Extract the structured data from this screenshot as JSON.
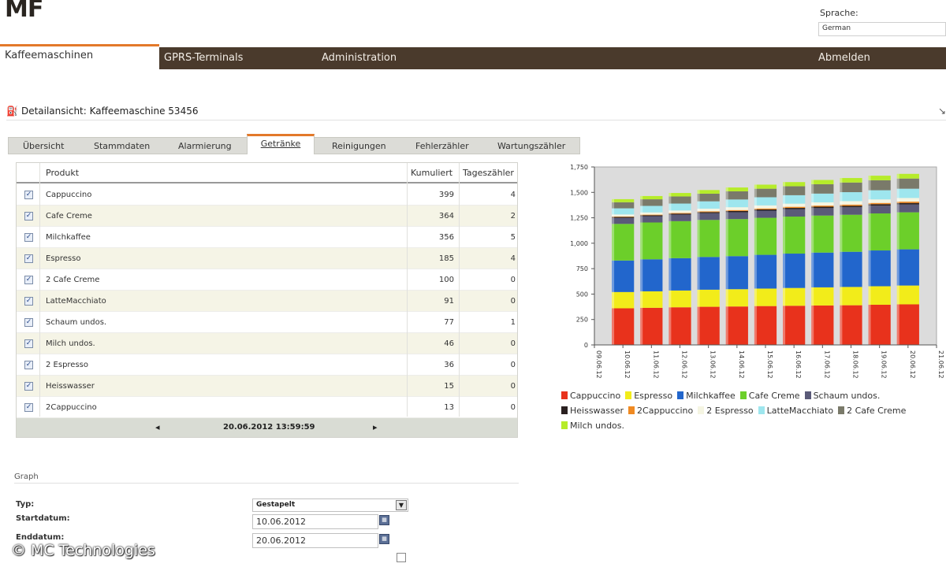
{
  "brand": {
    "logo": "MF"
  },
  "language": {
    "label": "Sprache:",
    "value": "German"
  },
  "nav": {
    "items": [
      {
        "label": "Kaffeemaschinen",
        "active": true
      },
      {
        "label": "GPRS-Terminals",
        "active": false
      },
      {
        "label": "Administration",
        "active": false
      }
    ],
    "logout": "Abmelden"
  },
  "page": {
    "title": "Detailansicht: Kaffeemaschine 53456"
  },
  "tabs": [
    {
      "label": "Übersicht",
      "active": false
    },
    {
      "label": "Stammdaten",
      "active": false
    },
    {
      "label": "Alarmierung",
      "active": false
    },
    {
      "label": "Getränke",
      "active": true
    },
    {
      "label": "Reinigungen",
      "active": false
    },
    {
      "label": "Fehlerzähler",
      "active": false
    },
    {
      "label": "Wartungszähler",
      "active": false
    }
  ],
  "grid": {
    "headers": {
      "product": "Produkt",
      "cumulative": "Kumuliert",
      "daily": "Tageszähler"
    },
    "rows": [
      {
        "product": "Cappuccino",
        "cumulative": "399",
        "daily": "4",
        "checked": true
      },
      {
        "product": "Cafe Creme",
        "cumulative": "364",
        "daily": "2",
        "checked": true
      },
      {
        "product": "Milchkaffee",
        "cumulative": "356",
        "daily": "5",
        "checked": true
      },
      {
        "product": "Espresso",
        "cumulative": "185",
        "daily": "4",
        "checked": true
      },
      {
        "product": "2 Cafe Creme",
        "cumulative": "100",
        "daily": "0",
        "checked": true
      },
      {
        "product": "LatteMacchiato",
        "cumulative": "91",
        "daily": "0",
        "checked": true
      },
      {
        "product": "Schaum undos.",
        "cumulative": "77",
        "daily": "1",
        "checked": true
      },
      {
        "product": "Milch undos.",
        "cumulative": "46",
        "daily": "0",
        "checked": true
      },
      {
        "product": "2 Espresso",
        "cumulative": "36",
        "daily": "0",
        "checked": true
      },
      {
        "product": "Heisswasser",
        "cumulative": "15",
        "daily": "0",
        "checked": true
      },
      {
        "product": "2Cappuccino",
        "cumulative": "13",
        "daily": "0",
        "checked": true
      }
    ],
    "footer": {
      "prev": "◂",
      "timestamp": "20.06.2012 13:59:59",
      "next": "▸"
    }
  },
  "graph_form": {
    "section": "Graph",
    "type_label": "Typ:",
    "type_value": "Gestapelt",
    "start_label": "Startdatum:",
    "start_value": "10.06.2012",
    "end_label": "Enddatum:",
    "end_value": "20.06.2012"
  },
  "watermark": "© MC Technologies",
  "chart_data": {
    "type": "bar",
    "stacked": true,
    "categories": [
      "10.06.12",
      "11.06.12",
      "12.06.12",
      "13.06.12",
      "14.06.12",
      "15.06.12",
      "16.06.12",
      "17.06.12",
      "18.06.12",
      "19.06.12",
      "20.06.12"
    ],
    "axis_ticks_x": [
      "09.06.12",
      "10.06.12",
      "11.06.12",
      "12.06.12",
      "13.06.12",
      "14.06.12",
      "15.06.12",
      "16.06.12",
      "17.06.12",
      "18.06.12",
      "19.06.12",
      "20.06.12",
      "21.06.12"
    ],
    "ylim": [
      0,
      1750
    ],
    "yticks": [
      0,
      250,
      500,
      750,
      1000,
      1250,
      1500,
      1750
    ],
    "ytick_labels": [
      "0",
      "250",
      "500",
      "750",
      "1,000",
      "1,250",
      "1,500",
      "1,750"
    ],
    "series": [
      {
        "name": "Cappuccino",
        "color": "#e8321c",
        "values": [
          360,
          365,
          370,
          375,
          378,
          382,
          385,
          388,
          390,
          395,
          399
        ]
      },
      {
        "name": "Espresso",
        "color": "#f2ec1a",
        "values": [
          160,
          162,
          165,
          168,
          170,
          172,
          175,
          178,
          180,
          182,
          185
        ]
      },
      {
        "name": "Milchkaffee",
        "color": "#2266cc",
        "values": [
          310,
          315,
          318,
          322,
          325,
          332,
          338,
          342,
          346,
          352,
          356
        ]
      },
      {
        "name": "Cafe Creme",
        "color": "#6ccf2a",
        "values": [
          360,
          362,
          364,
          364,
          364,
          364,
          364,
          364,
          364,
          364,
          364
        ]
      },
      {
        "name": "Schaum undos.",
        "color": "#5a5a78",
        "values": [
          60,
          62,
          64,
          66,
          68,
          70,
          72,
          73,
          74,
          76,
          77
        ]
      },
      {
        "name": "Heisswasser",
        "color": "#2a2020",
        "values": [
          8,
          9,
          10,
          11,
          12,
          12,
          13,
          14,
          14,
          15,
          15
        ]
      },
      {
        "name": "2Cappuccino",
        "color": "#f08a22",
        "values": [
          5,
          6,
          7,
          8,
          9,
          10,
          11,
          11,
          12,
          12,
          13
        ]
      },
      {
        "name": "2 Espresso",
        "color": "#f5f5e2",
        "values": [
          20,
          22,
          24,
          26,
          28,
          30,
          31,
          32,
          34,
          35,
          36
        ]
      },
      {
        "name": "LatteMacchiato",
        "color": "#9ee6ee",
        "values": [
          60,
          64,
          68,
          72,
          76,
          80,
          83,
          86,
          88,
          90,
          91
        ]
      },
      {
        "name": "2 Cafe Creme",
        "color": "#7a7a6a",
        "values": [
          60,
          65,
          70,
          75,
          80,
          84,
          88,
          92,
          95,
          98,
          100
        ]
      },
      {
        "name": "Milch undos.",
        "color": "#b6ec2a",
        "values": [
          30,
          32,
          34,
          36,
          38,
          40,
          41,
          42,
          44,
          45,
          46
        ]
      }
    ],
    "legend_position": "bottom"
  }
}
